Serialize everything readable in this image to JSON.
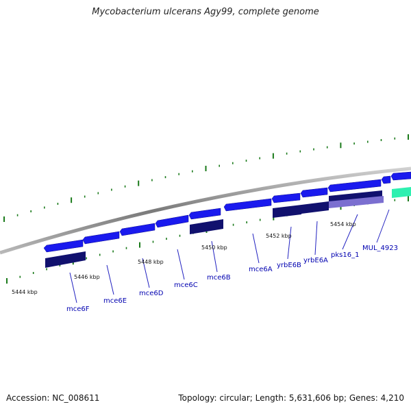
{
  "title": "Mycobacterium ulcerans Agy99, complete genome",
  "footer": {
    "accession": "Accession: NC_008611",
    "summary": "Topology: circular; Length: 5,631,606 bp; Genes: 4,210"
  },
  "colors": {
    "backbone": "#888888",
    "gene_forward": "#1a1aee",
    "gene_cds": "#11116e",
    "gene_pks": "#7b6fd0",
    "gene_other": "#2ef0b0",
    "tick_major": "#1a7a1a",
    "label": "#0000b0"
  },
  "scale_labels": [
    "5444 kbp",
    "5446 kbp",
    "5448 kbp",
    "5450 kbp",
    "5452 kbp",
    "5454 kbp"
  ],
  "genes": [
    {
      "name": "mce6F"
    },
    {
      "name": "mce6E"
    },
    {
      "name": "mce6D"
    },
    {
      "name": "mce6C"
    },
    {
      "name": "mce6B"
    },
    {
      "name": "mce6A"
    },
    {
      "name": "yrbE6B"
    },
    {
      "name": "yrbE6A"
    },
    {
      "name": "pks16_1"
    },
    {
      "name": "MUL_4923"
    }
  ]
}
